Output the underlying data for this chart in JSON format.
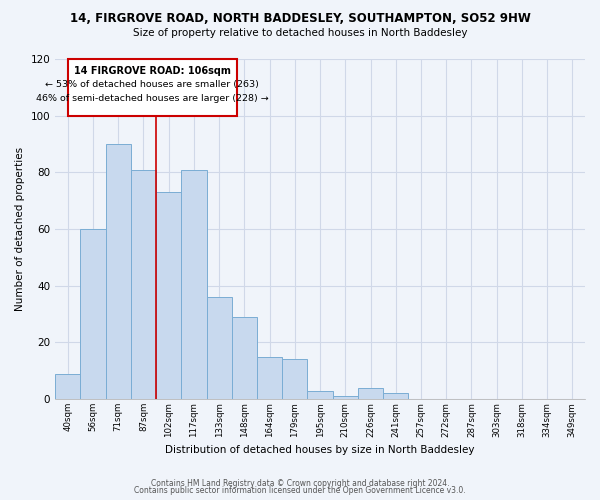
{
  "title": "14, FIRGROVE ROAD, NORTH BADDESLEY, SOUTHAMPTON, SO52 9HW",
  "subtitle": "Size of property relative to detached houses in North Baddesley",
  "xlabel": "Distribution of detached houses by size in North Baddesley",
  "ylabel": "Number of detached properties",
  "bar_color": "#c8d9ee",
  "bar_edge_color": "#7aadd4",
  "bins": [
    "40sqm",
    "56sqm",
    "71sqm",
    "87sqm",
    "102sqm",
    "117sqm",
    "133sqm",
    "148sqm",
    "164sqm",
    "179sqm",
    "195sqm",
    "210sqm",
    "226sqm",
    "241sqm",
    "257sqm",
    "272sqm",
    "287sqm",
    "303sqm",
    "318sqm",
    "334sqm",
    "349sqm"
  ],
  "values": [
    9,
    60,
    90,
    81,
    73,
    81,
    36,
    29,
    15,
    14,
    3,
    1,
    4,
    2,
    0,
    0,
    0,
    0,
    0,
    0
  ],
  "ylim": [
    0,
    120
  ],
  "yticks": [
    0,
    20,
    40,
    60,
    80,
    100,
    120
  ],
  "marker_label": "14 FIRGROVE ROAD: 106sqm",
  "annotation_line1": "← 53% of detached houses are smaller (263)",
  "annotation_line2": "46% of semi-detached houses are larger (228) →",
  "red_line_bin_index": 4,
  "footnote1": "Contains HM Land Registry data © Crown copyright and database right 2024.",
  "footnote2": "Contains public sector information licensed under the Open Government Licence v3.0.",
  "background_color": "#f0f4fa"
}
